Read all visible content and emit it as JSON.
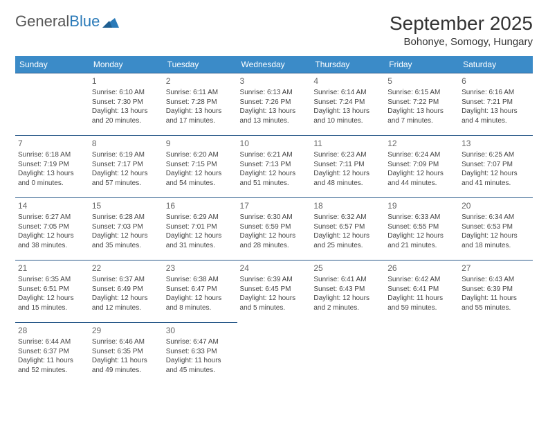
{
  "logo": {
    "text1": "General",
    "text2": "Blue"
  },
  "title": "September 2025",
  "location": "Bohonye, Somogy, Hungary",
  "colors": {
    "header_bg": "#3b8bc8",
    "header_text": "#ffffff",
    "row_border": "#2a5a8a",
    "logo_gray": "#555555",
    "logo_blue": "#2a7ab8",
    "body_text": "#444444"
  },
  "calendar": {
    "type": "table",
    "columns": [
      "Sunday",
      "Monday",
      "Tuesday",
      "Wednesday",
      "Thursday",
      "Friday",
      "Saturday"
    ],
    "weeks": [
      [
        null,
        {
          "day": "1",
          "sunrise": "6:10 AM",
          "sunset": "7:30 PM",
          "daylight": "13 hours and 20 minutes."
        },
        {
          "day": "2",
          "sunrise": "6:11 AM",
          "sunset": "7:28 PM",
          "daylight": "13 hours and 17 minutes."
        },
        {
          "day": "3",
          "sunrise": "6:13 AM",
          "sunset": "7:26 PM",
          "daylight": "13 hours and 13 minutes."
        },
        {
          "day": "4",
          "sunrise": "6:14 AM",
          "sunset": "7:24 PM",
          "daylight": "13 hours and 10 minutes."
        },
        {
          "day": "5",
          "sunrise": "6:15 AM",
          "sunset": "7:22 PM",
          "daylight": "13 hours and 7 minutes."
        },
        {
          "day": "6",
          "sunrise": "6:16 AM",
          "sunset": "7:21 PM",
          "daylight": "13 hours and 4 minutes."
        }
      ],
      [
        {
          "day": "7",
          "sunrise": "6:18 AM",
          "sunset": "7:19 PM",
          "daylight": "13 hours and 0 minutes."
        },
        {
          "day": "8",
          "sunrise": "6:19 AM",
          "sunset": "7:17 PM",
          "daylight": "12 hours and 57 minutes."
        },
        {
          "day": "9",
          "sunrise": "6:20 AM",
          "sunset": "7:15 PM",
          "daylight": "12 hours and 54 minutes."
        },
        {
          "day": "10",
          "sunrise": "6:21 AM",
          "sunset": "7:13 PM",
          "daylight": "12 hours and 51 minutes."
        },
        {
          "day": "11",
          "sunrise": "6:23 AM",
          "sunset": "7:11 PM",
          "daylight": "12 hours and 48 minutes."
        },
        {
          "day": "12",
          "sunrise": "6:24 AM",
          "sunset": "7:09 PM",
          "daylight": "12 hours and 44 minutes."
        },
        {
          "day": "13",
          "sunrise": "6:25 AM",
          "sunset": "7:07 PM",
          "daylight": "12 hours and 41 minutes."
        }
      ],
      [
        {
          "day": "14",
          "sunrise": "6:27 AM",
          "sunset": "7:05 PM",
          "daylight": "12 hours and 38 minutes."
        },
        {
          "day": "15",
          "sunrise": "6:28 AM",
          "sunset": "7:03 PM",
          "daylight": "12 hours and 35 minutes."
        },
        {
          "day": "16",
          "sunrise": "6:29 AM",
          "sunset": "7:01 PM",
          "daylight": "12 hours and 31 minutes."
        },
        {
          "day": "17",
          "sunrise": "6:30 AM",
          "sunset": "6:59 PM",
          "daylight": "12 hours and 28 minutes."
        },
        {
          "day": "18",
          "sunrise": "6:32 AM",
          "sunset": "6:57 PM",
          "daylight": "12 hours and 25 minutes."
        },
        {
          "day": "19",
          "sunrise": "6:33 AM",
          "sunset": "6:55 PM",
          "daylight": "12 hours and 21 minutes."
        },
        {
          "day": "20",
          "sunrise": "6:34 AM",
          "sunset": "6:53 PM",
          "daylight": "12 hours and 18 minutes."
        }
      ],
      [
        {
          "day": "21",
          "sunrise": "6:35 AM",
          "sunset": "6:51 PM",
          "daylight": "12 hours and 15 minutes."
        },
        {
          "day": "22",
          "sunrise": "6:37 AM",
          "sunset": "6:49 PM",
          "daylight": "12 hours and 12 minutes."
        },
        {
          "day": "23",
          "sunrise": "6:38 AM",
          "sunset": "6:47 PM",
          "daylight": "12 hours and 8 minutes."
        },
        {
          "day": "24",
          "sunrise": "6:39 AM",
          "sunset": "6:45 PM",
          "daylight": "12 hours and 5 minutes."
        },
        {
          "day": "25",
          "sunrise": "6:41 AM",
          "sunset": "6:43 PM",
          "daylight": "12 hours and 2 minutes."
        },
        {
          "day": "26",
          "sunrise": "6:42 AM",
          "sunset": "6:41 PM",
          "daylight": "11 hours and 59 minutes."
        },
        {
          "day": "27",
          "sunrise": "6:43 AM",
          "sunset": "6:39 PM",
          "daylight": "11 hours and 55 minutes."
        }
      ],
      [
        {
          "day": "28",
          "sunrise": "6:44 AM",
          "sunset": "6:37 PM",
          "daylight": "11 hours and 52 minutes."
        },
        {
          "day": "29",
          "sunrise": "6:46 AM",
          "sunset": "6:35 PM",
          "daylight": "11 hours and 49 minutes."
        },
        {
          "day": "30",
          "sunrise": "6:47 AM",
          "sunset": "6:33 PM",
          "daylight": "11 hours and 45 minutes."
        },
        null,
        null,
        null,
        null
      ]
    ]
  }
}
